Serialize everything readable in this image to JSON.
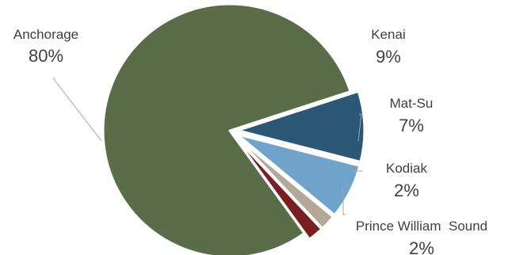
{
  "chart_data": {
    "type": "pie",
    "title": "",
    "slices": [
      {
        "label": "Kenai",
        "value": 9,
        "value_label": "9%",
        "color": "#2c5777"
      },
      {
        "label": "Mat-Su",
        "value": 7,
        "value_label": "7%",
        "color": "#6fa3cc"
      },
      {
        "label": "Kodiak",
        "value": 2,
        "value_label": "2%",
        "color": "#b3a795"
      },
      {
        "label": "Prince William  Sound",
        "value": 2,
        "value_label": "2%",
        "color": "#7a1f1f"
      },
      {
        "label": "Anchorage",
        "value": 80,
        "value_label": "80%",
        "color": "#5b6c48"
      }
    ],
    "legend": "none",
    "data_labels": "outside with leader lines"
  }
}
